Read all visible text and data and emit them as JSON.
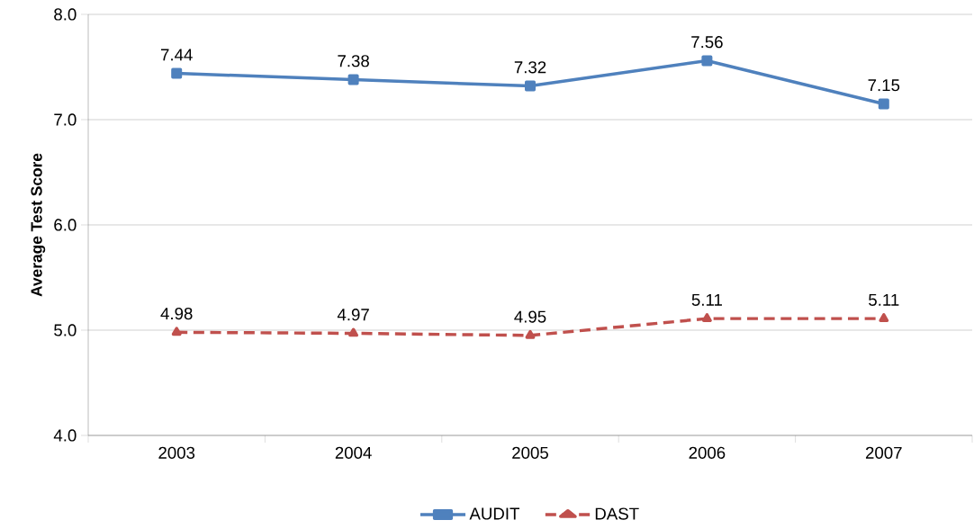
{
  "chart_data": {
    "type": "line",
    "ylabel": "Average Test Score",
    "categories": [
      "2003",
      "2004",
      "2005",
      "2006",
      "2007"
    ],
    "series": [
      {
        "name": "AUDIT",
        "color": "#4f81bd",
        "values": [
          7.44,
          7.38,
          7.32,
          7.56,
          7.15
        ],
        "marker": "square",
        "line_style": "solid"
      },
      {
        "name": "DAST",
        "color": "#c0504d",
        "values": [
          4.98,
          4.97,
          4.95,
          5.11,
          5.11
        ],
        "marker": "triangle",
        "line_style": "dashed"
      }
    ],
    "ylim": [
      4.0,
      8.0
    ],
    "yticks": [
      {
        "value": 4.0,
        "label": "4.0"
      },
      {
        "value": 5.0,
        "label": "5.0"
      },
      {
        "value": 6.0,
        "label": "6.0"
      },
      {
        "value": 7.0,
        "label": "7.0"
      },
      {
        "value": 8.0,
        "label": "8.0"
      }
    ],
    "grid": "y",
    "legend": "bottom",
    "data_labels": true
  }
}
